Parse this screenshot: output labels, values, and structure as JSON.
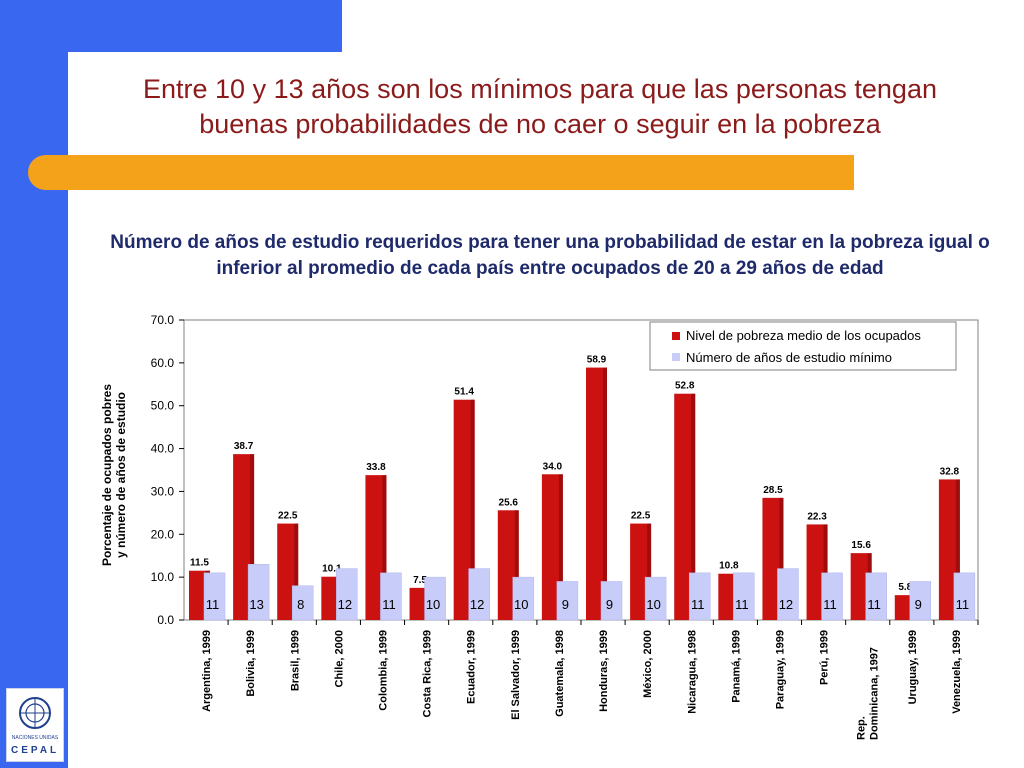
{
  "slide": {
    "title_line1": "Entre 10 y 13 años son los mínimos para que las personas tengan",
    "title_line2": "buenas probabilidades de no caer o seguir en la pobreza",
    "logo_un_text": "NACIONES UNIDAS",
    "logo_text": "CEPAL"
  },
  "colors": {
    "band": "#3a67f0",
    "accent_orange": "#f5a21b",
    "title_red": "#8b1a1a",
    "series_poverty": "#cc1111",
    "series_years": "#c8ccf8"
  },
  "chart_data": {
    "type": "bar",
    "title": "Número de años de estudio requeridos para tener una probabilidad de estar en la pobreza igual o inferior al promedio de cada país entre ocupados de 20 a 29 años de edad",
    "ylabel": "Porcentaje de ocupados pobres y número de años de estudio",
    "xlabel": "",
    "ylim": [
      0,
      70
    ],
    "yticks": [
      "0.0",
      "10.0",
      "20.0",
      "30.0",
      "40.0",
      "50.0",
      "60.0",
      "70.0"
    ],
    "legend_position": "top-right",
    "grid": false,
    "categories": [
      "Argentina, 1999",
      "Bolivia, 1999",
      "Brasil, 1999",
      "Chile, 2000",
      "Colombia, 1999",
      "Costa Rica, 1999",
      "Ecuador, 1999",
      "El Salvador, 1999",
      "Guatemala, 1998",
      "Honduras, 1999",
      "México, 2000",
      "Nicaragua, 1998",
      "Panamá, 1999",
      "Paraguay, 1999",
      "Perú, 1999",
      "Rep. Dominicana, 1997",
      "Uruguay, 1999",
      "Venezuela, 1999"
    ],
    "series": [
      {
        "name": "Nivel de pobreza medio de los ocupados",
        "values": [
          11.5,
          38.7,
          22.5,
          10.1,
          33.8,
          7.5,
          51.4,
          25.6,
          34.0,
          58.9,
          22.5,
          52.8,
          10.8,
          28.5,
          22.3,
          15.6,
          5.8,
          32.8
        ],
        "labels": [
          "11.5",
          "38.7",
          "22.5",
          "10.1",
          "33.8",
          "7.5",
          "51.4",
          "25.6",
          "34.0",
          "58.9",
          "22.5",
          "52.8",
          "10.8",
          "28.5",
          "22.3",
          "15.6",
          "5.8",
          "32.8"
        ]
      },
      {
        "name": "Número de años de estudio mínimo",
        "values": [
          11,
          13,
          8,
          12,
          11,
          10,
          12,
          10,
          9,
          9,
          10,
          11,
          11,
          12,
          11,
          11,
          9,
          11
        ],
        "labels": [
          "11",
          "13",
          "8",
          "12",
          "11",
          "10",
          "12",
          "10",
          "9",
          "9",
          "10",
          "11",
          "11",
          "12",
          "11",
          "11",
          "9",
          "11"
        ]
      }
    ]
  }
}
